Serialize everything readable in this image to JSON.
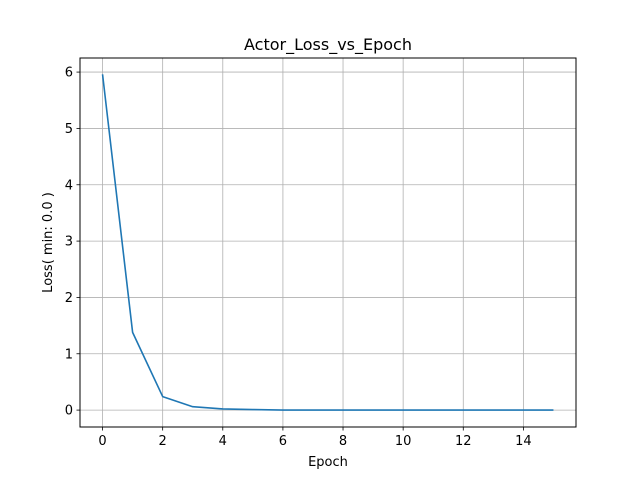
{
  "chart_data": {
    "type": "line",
    "title": "Actor_Loss_vs_Epoch",
    "xlabel": "Epoch",
    "ylabel": "Loss( min: 0.0 )",
    "xlim": [
      -0.75,
      15.75
    ],
    "ylim": [
      -0.3,
      6.25
    ],
    "xticks": [
      0,
      2,
      4,
      6,
      8,
      10,
      12,
      14
    ],
    "yticks": [
      0,
      1,
      2,
      3,
      4,
      5,
      6
    ],
    "grid": true,
    "series": [
      {
        "color": "#1f77b4",
        "x": [
          0,
          1,
          2,
          3,
          4,
          5,
          6,
          7,
          8,
          9,
          10,
          11,
          12,
          13,
          14,
          15
        ],
        "y": [
          5.96,
          1.38,
          0.24,
          0.06,
          0.02,
          0.01,
          0.0,
          0.0,
          0.0,
          0.0,
          0.0,
          0.0,
          0.0,
          0.0,
          0.0,
          0.0
        ]
      }
    ]
  }
}
